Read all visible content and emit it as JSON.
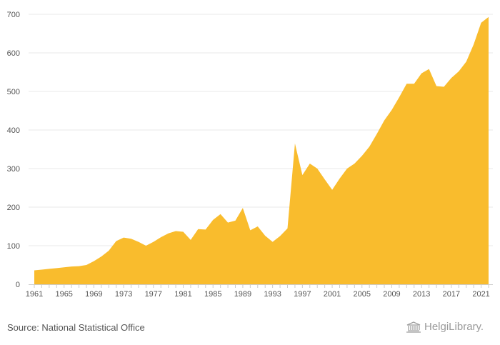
{
  "chart_data": {
    "type": "area",
    "x": [
      1961,
      1962,
      1963,
      1964,
      1965,
      1966,
      1967,
      1968,
      1969,
      1970,
      1971,
      1972,
      1973,
      1974,
      1975,
      1976,
      1977,
      1978,
      1979,
      1980,
      1981,
      1982,
      1983,
      1984,
      1985,
      1986,
      1987,
      1988,
      1989,
      1990,
      1991,
      1992,
      1993,
      1994,
      1995,
      1996,
      1997,
      1998,
      1999,
      2000,
      2001,
      2002,
      2003,
      2004,
      2005,
      2006,
      2007,
      2008,
      2009,
      2010,
      2011,
      2012,
      2013,
      2014,
      2015,
      2016,
      2017,
      2018,
      2019,
      2020,
      2021,
      2022
    ],
    "values": [
      36,
      38,
      40,
      42,
      44,
      46,
      47,
      50,
      60,
      72,
      87,
      112,
      121,
      118,
      110,
      100,
      110,
      122,
      132,
      138,
      136,
      115,
      143,
      142,
      167,
      182,
      160,
      165,
      198,
      140,
      150,
      126,
      110,
      125,
      145,
      365,
      283,
      313,
      300,
      272,
      245,
      274,
      300,
      313,
      333,
      357,
      390,
      425,
      452,
      485,
      520,
      520,
      547,
      558,
      514,
      512,
      535,
      552,
      577,
      622,
      678,
      693
    ],
    "xticks": [
      "1961",
      "1965",
      "1969",
      "1973",
      "1977",
      "1981",
      "1985",
      "1989",
      "1993",
      "1997",
      "2001",
      "2005",
      "2009",
      "2013",
      "2017",
      "2021"
    ],
    "yticks": [
      "0",
      "100",
      "200",
      "300",
      "400",
      "500",
      "600",
      "700"
    ],
    "ylim": [
      0,
      700
    ],
    "color": "#F9BC2D",
    "grid": true
  },
  "footer": {
    "source": "Source: National Statistical Office",
    "logo_text": "HelgiLibrary."
  }
}
